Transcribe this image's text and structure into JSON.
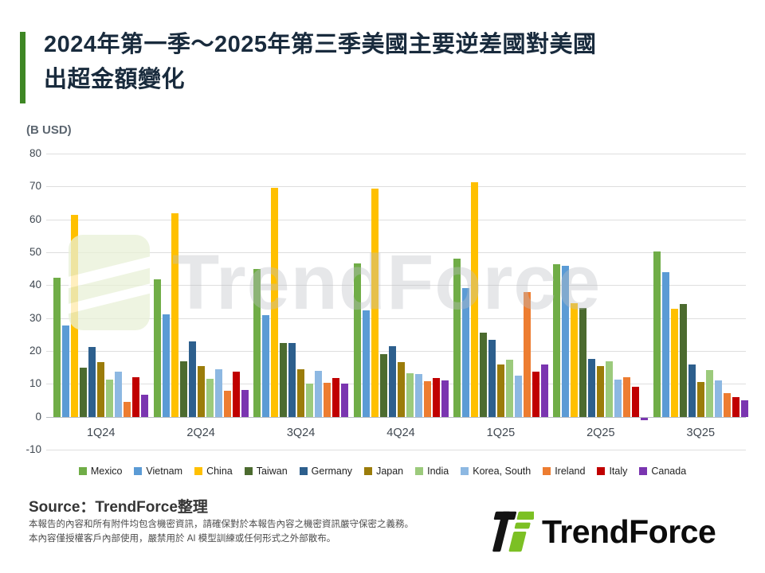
{
  "header": {
    "title_line1": "2024年第一季～2025年第三季美國主要逆差國對美國",
    "title_line2": "出超金額變化"
  },
  "chart": {
    "unit_label": "(B USD)"
  },
  "chart_data": {
    "type": "bar",
    "title": "2024年第一季～2025年第三季美國主要逆差國對美國出超金額變化",
    "xlabel": "",
    "ylabel": "B USD",
    "ylim": [
      -10,
      80
    ],
    "yticks": [
      80,
      70,
      60,
      50,
      40,
      30,
      20,
      10,
      0,
      -10
    ],
    "grid": true,
    "legend_position": "bottom",
    "categories": [
      "1Q24",
      "2Q24",
      "3Q24",
      "4Q24",
      "1Q25",
      "2Q25",
      "3Q25"
    ],
    "series": [
      {
        "name": "Mexico",
        "color": "#70AD47",
        "values": [
          42.3,
          41.7,
          45.0,
          46.7,
          48.0,
          46.4,
          50.2
        ]
      },
      {
        "name": "Vietnam",
        "color": "#5B9BD5",
        "values": [
          27.8,
          31.2,
          30.8,
          32.3,
          39.0,
          46.0,
          44.0
        ]
      },
      {
        "name": "China",
        "color": "#FFC000",
        "values": [
          61.3,
          61.9,
          69.5,
          69.3,
          71.2,
          34.5,
          32.8
        ]
      },
      {
        "name": "Taiwan",
        "color": "#4C6B2F",
        "values": [
          14.8,
          16.8,
          22.4,
          19.0,
          25.5,
          33.0,
          34.2
        ]
      },
      {
        "name": "Germany",
        "color": "#2D5F8D",
        "values": [
          21.3,
          23.0,
          22.5,
          21.4,
          23.5,
          17.5,
          15.8
        ]
      },
      {
        "name": "Japan",
        "color": "#9B7C0A",
        "values": [
          16.5,
          15.3,
          14.4,
          16.6,
          15.8,
          15.5,
          10.6
        ]
      },
      {
        "name": "India",
        "color": "#9CCA7C",
        "values": [
          11.3,
          11.5,
          10.1,
          13.2,
          17.3,
          16.8,
          14.1
        ]
      },
      {
        "name": "Korea, South",
        "color": "#8DB8E2",
        "values": [
          13.6,
          14.4,
          13.9,
          13.1,
          12.5,
          11.3,
          11.0
        ]
      },
      {
        "name": "Ireland",
        "color": "#ED7D31",
        "values": [
          4.5,
          7.8,
          10.3,
          10.8,
          38.0,
          11.9,
          7.2
        ]
      },
      {
        "name": "Italy",
        "color": "#C00000",
        "values": [
          12.0,
          13.6,
          11.7,
          11.8,
          13.8,
          9.0,
          6.0
        ]
      },
      {
        "name": "Canada",
        "color": "#7A35B0",
        "values": [
          6.8,
          8.2,
          10.0,
          11.0,
          16.0,
          -0.8,
          5.0
        ]
      }
    ]
  },
  "watermark": {
    "text": "TrendForce"
  },
  "source": {
    "label": "Source：TrendForce整理"
  },
  "footer": {
    "line1": "本報告的內容和所有附件均包含機密資訊，請確保對於本報告內容之機密資訊嚴守保密之義務。",
    "line2": "本內容僅授權客戶內部使用，嚴禁用於 AI 模型訓練或任何形式之外部散布。"
  },
  "brand": {
    "name": "TrendForce"
  },
  "colors": {
    "accent_green": "#3e8724",
    "title_navy": "#192b3d",
    "logo_green": "#7CC024",
    "logo_black": "#141414"
  }
}
